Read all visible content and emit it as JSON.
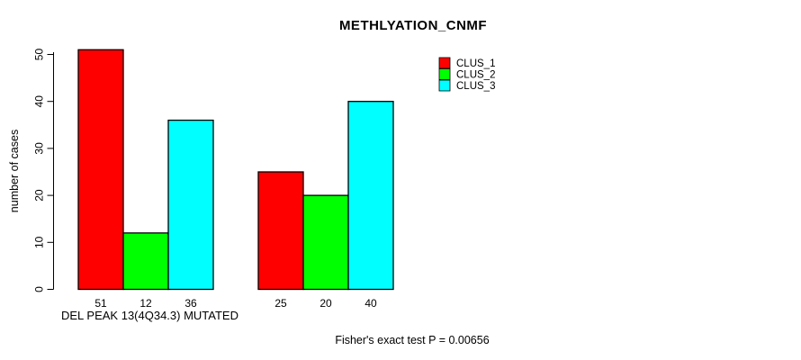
{
  "chart_data": {
    "type": "bar",
    "title": "METHLYATION_CNMF",
    "ylabel": "number of cases",
    "xlabel": "DEL PEAK 13(4Q34.3) MUTATED",
    "footnote": "Fisher's exact test P = 0.00656",
    "ylim": [
      0,
      50
    ],
    "yticks": [
      0,
      10,
      20,
      30,
      40,
      50
    ],
    "grid": false,
    "legend_position": "top-right",
    "legend": [
      {
        "name": "CLUS_1",
        "color": "#FF0000"
      },
      {
        "name": "CLUS_2",
        "color": "#00FF00"
      },
      {
        "name": "CLUS_3",
        "color": "#00FFFF"
      }
    ],
    "groups": [
      {
        "bar_value_labels": [
          "51",
          "12",
          "36"
        ],
        "values": [
          51,
          12,
          36
        ]
      },
      {
        "bar_value_labels": [
          "25",
          "20",
          "40"
        ],
        "values": [
          25,
          20,
          40
        ]
      }
    ],
    "bar_border_color": "#000000",
    "axis_color": "#000000"
  }
}
